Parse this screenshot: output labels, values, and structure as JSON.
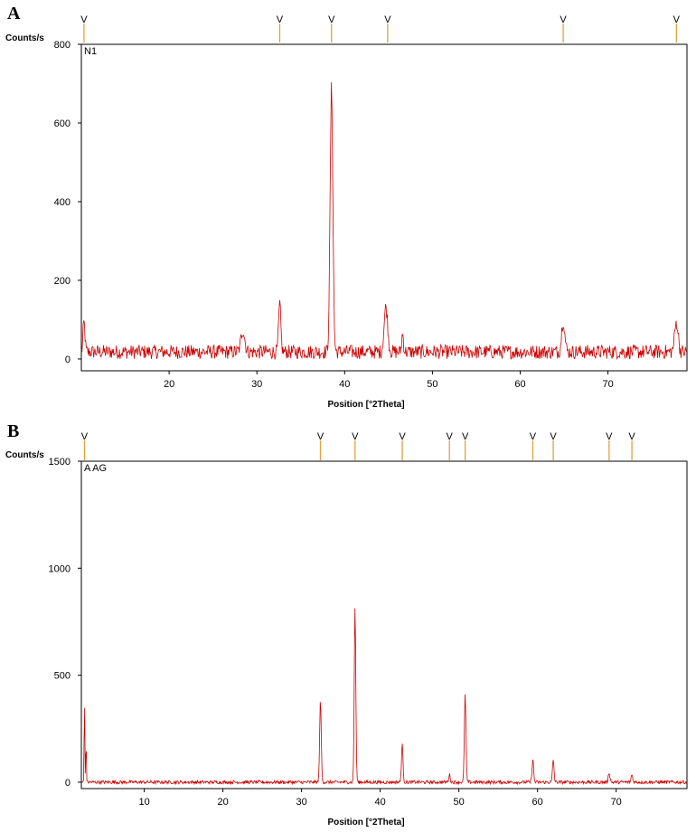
{
  "panels": [
    {
      "label": "A"
    },
    {
      "label": "B"
    }
  ],
  "colors": {
    "trace": "#cc0000",
    "marker": "#e0a040",
    "axis": "#000000"
  },
  "marker_glyph": "V",
  "chart_data": [
    {
      "type": "line",
      "sample_label": "N1",
      "ylabel": "Counts/s",
      "xlabel": "Position [°2Theta]",
      "xlim": [
        10,
        79
      ],
      "ylim": [
        -30,
        800
      ],
      "xticks": [
        20,
        30,
        40,
        50,
        60,
        70
      ],
      "yticks": [
        0,
        200,
        400,
        600,
        800
      ],
      "baseline": 18,
      "noise": 18,
      "peaks": [
        {
          "x": 10.3,
          "y": 75,
          "w": 0.15
        },
        {
          "x": 28.4,
          "y": 55,
          "w": 0.3
        },
        {
          "x": 32.6,
          "y": 120,
          "w": 0.18
        },
        {
          "x": 38.5,
          "y": 670,
          "w": 0.22
        },
        {
          "x": 44.7,
          "y": 115,
          "w": 0.28
        },
        {
          "x": 46.6,
          "y": 45,
          "w": 0.15
        },
        {
          "x": 64.9,
          "y": 80,
          "w": 0.25
        },
        {
          "x": 77.8,
          "y": 75,
          "w": 0.28
        }
      ],
      "reference_lines": [
        10.3,
        32.6,
        38.5,
        44.9,
        64.9,
        77.8
      ]
    },
    {
      "type": "line",
      "sample_label": "A AG",
      "ylabel": "Counts/s",
      "xlabel": "Position [°2Theta]",
      "xlim": [
        2,
        79
      ],
      "ylim": [
        -30,
        1500
      ],
      "xticks": [
        10,
        20,
        30,
        40,
        50,
        60,
        70
      ],
      "yticks": [
        0,
        500,
        1000,
        1500
      ],
      "baseline": 0,
      "noise": 8,
      "peaks": [
        {
          "x": 2.4,
          "y": 390,
          "w": 0.06
        },
        {
          "x": 2.6,
          "y": 190,
          "w": 0.06
        },
        {
          "x": 32.4,
          "y": 375,
          "w": 0.14
        },
        {
          "x": 36.8,
          "y": 810,
          "w": 0.14
        },
        {
          "x": 42.8,
          "y": 175,
          "w": 0.14
        },
        {
          "x": 48.8,
          "y": 35,
          "w": 0.14
        },
        {
          "x": 50.8,
          "y": 410,
          "w": 0.14
        },
        {
          "x": 59.4,
          "y": 105,
          "w": 0.14
        },
        {
          "x": 62.0,
          "y": 105,
          "w": 0.14
        },
        {
          "x": 69.1,
          "y": 45,
          "w": 0.15
        },
        {
          "x": 72.0,
          "y": 35,
          "w": 0.15
        }
      ],
      "reference_lines": [
        2.4,
        32.4,
        36.8,
        42.8,
        48.8,
        50.8,
        59.4,
        62.0,
        69.1,
        72.0
      ]
    }
  ]
}
